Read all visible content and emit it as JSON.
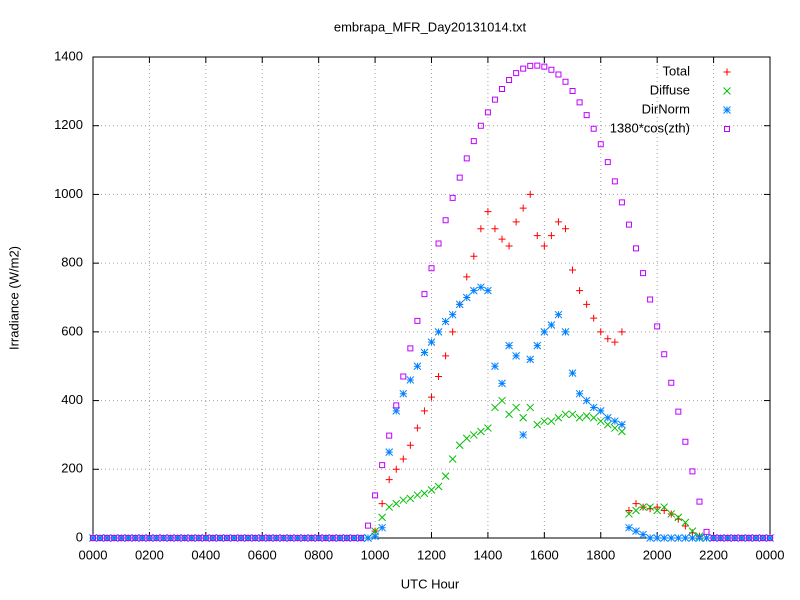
{
  "chart_data": {
    "type": "scatter",
    "title": "embrapa_MFR_Day20131014.txt",
    "xlabel": "UTC Hour",
    "ylabel": "Irradiance (W/m2)",
    "xlim": [
      0,
      24
    ],
    "ylim": [
      0,
      1400
    ],
    "xticks": [
      {
        "value": 0,
        "label": "0000"
      },
      {
        "value": 2,
        "label": "0200"
      },
      {
        "value": 4,
        "label": "0400"
      },
      {
        "value": 6,
        "label": "0600"
      },
      {
        "value": 8,
        "label": "0800"
      },
      {
        "value": 10,
        "label": "1000"
      },
      {
        "value": 12,
        "label": "1200"
      },
      {
        "value": 14,
        "label": "1400"
      },
      {
        "value": 16,
        "label": "1600"
      },
      {
        "value": 18,
        "label": "1800"
      },
      {
        "value": 20,
        "label": "2000"
      },
      {
        "value": 22,
        "label": "2200"
      },
      {
        "value": 24,
        "label": "0000"
      }
    ],
    "yticks": [
      0,
      200,
      400,
      600,
      800,
      1000,
      1200,
      1400
    ],
    "grid": true,
    "legend": "top right",
    "x": [
      0,
      0.25,
      0.5,
      0.75,
      1,
      1.25,
      1.5,
      1.75,
      2,
      2.25,
      2.5,
      2.75,
      3,
      3.25,
      3.5,
      3.75,
      4,
      4.25,
      4.5,
      4.75,
      5,
      5.25,
      5.5,
      5.75,
      6,
      6.25,
      6.5,
      6.75,
      7,
      7.25,
      7.5,
      7.75,
      8,
      8.25,
      8.5,
      8.75,
      9,
      9.25,
      9.5,
      9.75,
      10,
      10.25,
      10.5,
      10.75,
      11,
      11.25,
      11.5,
      11.75,
      12,
      12.25,
      12.5,
      12.75,
      13,
      13.25,
      13.5,
      13.75,
      14,
      14.25,
      14.5,
      14.75,
      15,
      15.25,
      15.5,
      15.75,
      16,
      16.25,
      16.5,
      16.75,
      17,
      17.25,
      17.5,
      17.75,
      18,
      18.25,
      18.5,
      18.75,
      19,
      19.25,
      19.5,
      19.75,
      20,
      20.25,
      20.5,
      20.75,
      21,
      21.25,
      21.5,
      21.75,
      22,
      22.25,
      22.5,
      22.75,
      23,
      23.25,
      23.5,
      23.75,
      24
    ],
    "series": [
      {
        "name": "Total",
        "color": "#ff0000",
        "marker": "plus",
        "values": [
          0,
          0,
          0,
          0,
          0,
          0,
          0,
          0,
          0,
          0,
          0,
          0,
          0,
          0,
          0,
          0,
          0,
          0,
          0,
          0,
          0,
          0,
          0,
          0,
          0,
          0,
          0,
          0,
          0,
          0,
          0,
          0,
          0,
          0,
          0,
          0,
          0,
          0,
          0,
          0,
          20,
          100,
          170,
          200,
          230,
          270,
          320,
          370,
          410,
          470,
          530,
          600,
          680,
          760,
          820,
          900,
          950,
          900,
          870,
          850,
          920,
          960,
          1000,
          880,
          850,
          880,
          920,
          900,
          780,
          720,
          680,
          640,
          600,
          580,
          570,
          600,
          80,
          100,
          90,
          85,
          90,
          80,
          70,
          55,
          35,
          15,
          5,
          0,
          0,
          0,
          0,
          0,
          0,
          0,
          0,
          0,
          0
        ]
      },
      {
        "name": "Diffuse",
        "color": "#00c000",
        "marker": "cross",
        "values": [
          0,
          0,
          0,
          0,
          0,
          0,
          0,
          0,
          0,
          0,
          0,
          0,
          0,
          0,
          0,
          0,
          0,
          0,
          0,
          0,
          0,
          0,
          0,
          0,
          0,
          0,
          0,
          0,
          0,
          0,
          0,
          0,
          0,
          0,
          0,
          0,
          0,
          0,
          0,
          0,
          20,
          60,
          90,
          100,
          110,
          115,
          125,
          130,
          140,
          150,
          180,
          230,
          270,
          290,
          300,
          310,
          320,
          380,
          400,
          360,
          380,
          350,
          380,
          330,
          340,
          340,
          350,
          360,
          360,
          350,
          355,
          350,
          340,
          330,
          320,
          310,
          70,
          80,
          90,
          90,
          80,
          90,
          70,
          60,
          45,
          20,
          5,
          0,
          0,
          0,
          0,
          0,
          0,
          0,
          0,
          0,
          0
        ]
      },
      {
        "name": "DirNorm",
        "color": "#0080ff",
        "marker": "star",
        "values": [
          0,
          0,
          0,
          0,
          0,
          0,
          0,
          0,
          0,
          0,
          0,
          0,
          0,
          0,
          0,
          0,
          0,
          0,
          0,
          0,
          0,
          0,
          0,
          0,
          0,
          0,
          0,
          0,
          0,
          0,
          0,
          0,
          0,
          0,
          0,
          0,
          0,
          0,
          0,
          0,
          5,
          30,
          250,
          370,
          420,
          460,
          500,
          540,
          570,
          600,
          630,
          650,
          680,
          700,
          720,
          730,
          720,
          500,
          450,
          560,
          530,
          300,
          520,
          560,
          600,
          620,
          650,
          600,
          480,
          420,
          400,
          380,
          370,
          350,
          340,
          330,
          30,
          20,
          10,
          0,
          0,
          0,
          0,
          0,
          0,
          0,
          0,
          0,
          0,
          0,
          0,
          0,
          0,
          0,
          0,
          0,
          0
        ]
      },
      {
        "name": "1380*cos(zth)",
        "color": "#c000ff",
        "marker": "square",
        "values": [
          0,
          0,
          0,
          0,
          0,
          0,
          0,
          0,
          0,
          0,
          0,
          0,
          0,
          0,
          0,
          0,
          0,
          0,
          0,
          0,
          0,
          0,
          0,
          0,
          0,
          0,
          0,
          0,
          0,
          0,
          0,
          0,
          0,
          0,
          0,
          0,
          0,
          0,
          0,
          36,
          124,
          212,
          298,
          386,
          470,
          552,
          632,
          710,
          785,
          857,
          925,
          990,
          1049,
          1105,
          1155,
          1200,
          1239,
          1276,
          1307,
          1333,
          1353,
          1366,
          1374,
          1375,
          1372,
          1363,
          1349,
          1328,
          1301,
          1268,
          1231,
          1191,
          1146,
          1094,
          1038,
          977,
          912,
          843,
          771,
          694,
          616,
          535,
          452,
          368,
          280,
          194,
          106,
          18,
          0,
          0,
          0,
          0,
          0,
          0,
          0,
          0,
          0
        ]
      }
    ]
  }
}
